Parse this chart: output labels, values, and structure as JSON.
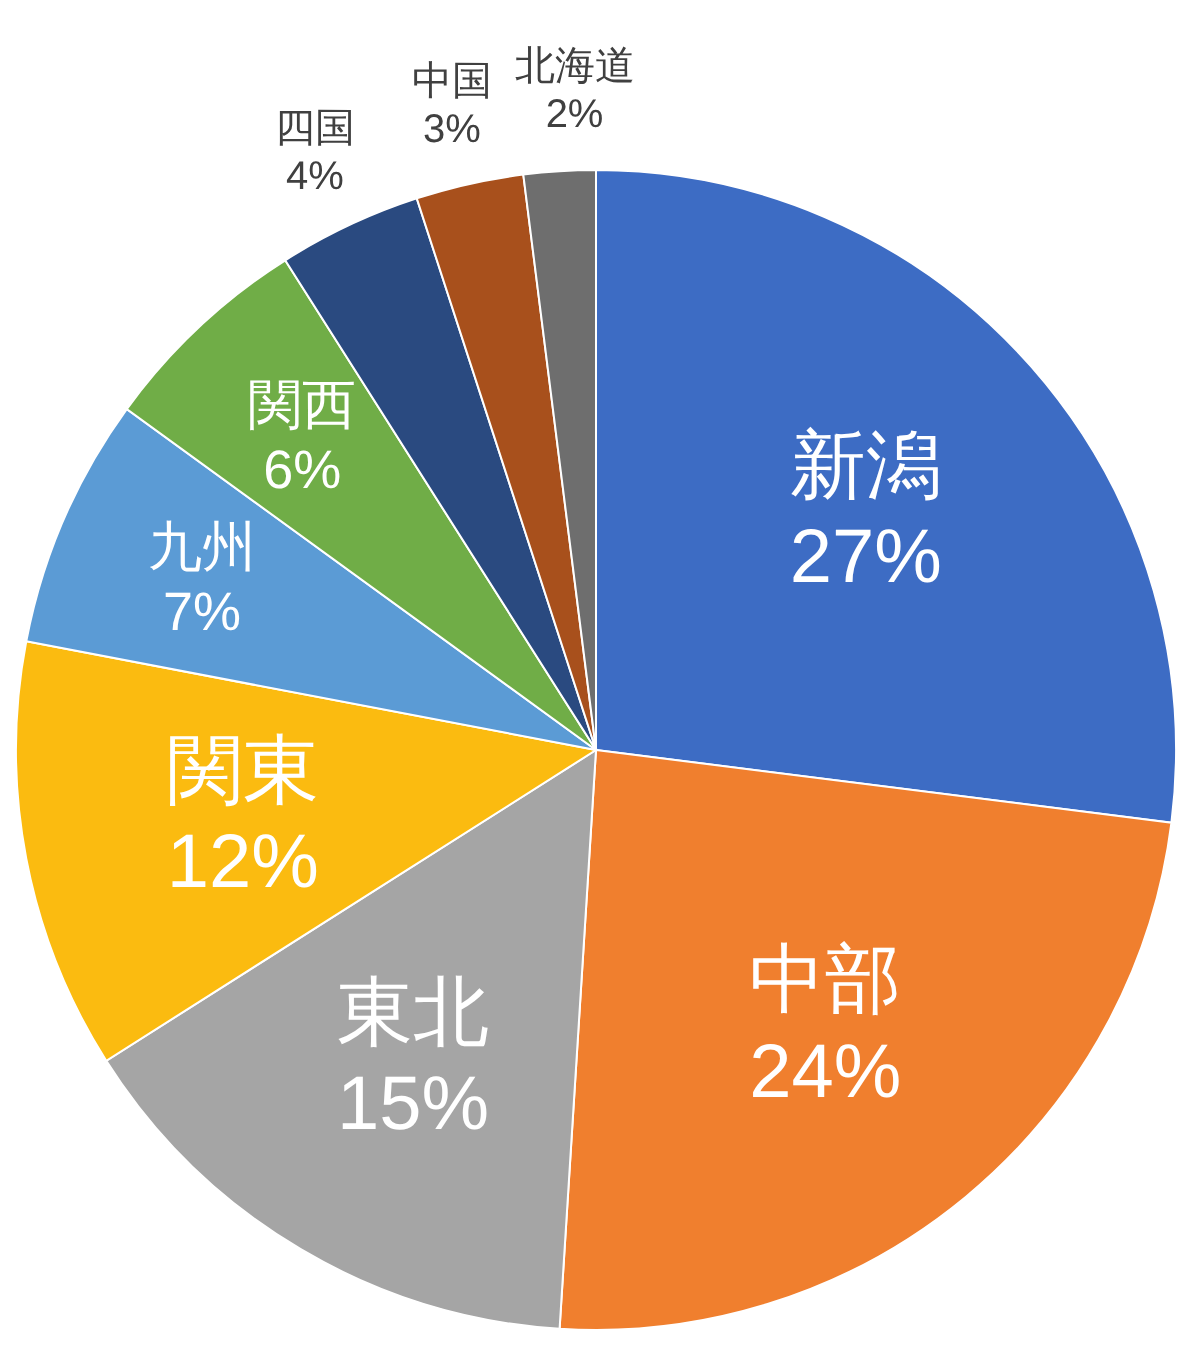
{
  "chart_data": {
    "type": "pie",
    "categories": [
      "新潟",
      "中部",
      "東北",
      "関東",
      "九州",
      "関西",
      "四国",
      "中国",
      "北海道"
    ],
    "values": [
      27,
      24,
      15,
      12,
      7,
      6,
      4,
      3,
      2
    ],
    "value_labels": [
      "27%",
      "24%",
      "15%",
      "12%",
      "7%",
      "6%",
      "4%",
      "3%",
      "2%"
    ],
    "colors": [
      "#3d6cc4",
      "#f07f2e",
      "#a5a5a5",
      "#fbbb10",
      "#5b9bd5",
      "#70ad47",
      "#2a4a80",
      "#a8501c",
      "#6e6e6e"
    ]
  }
}
